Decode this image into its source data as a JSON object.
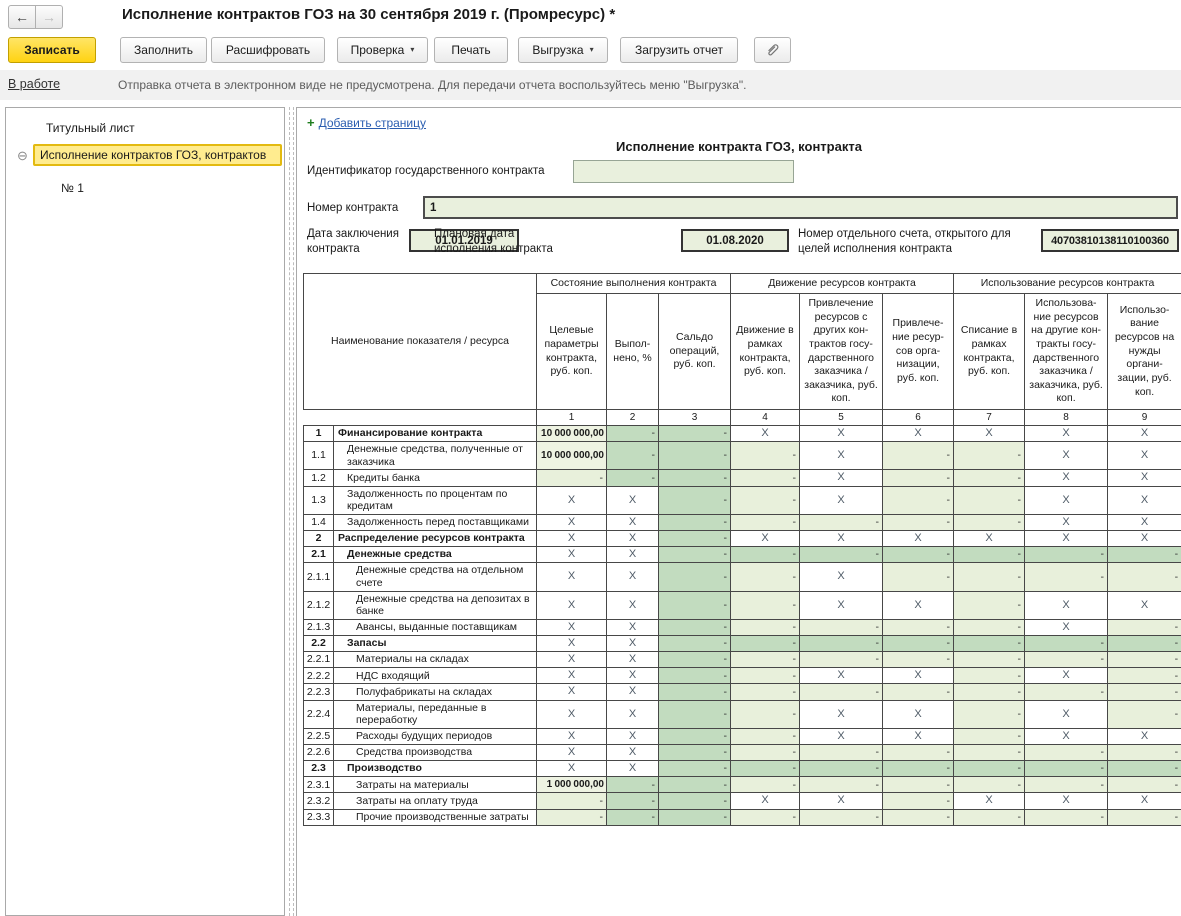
{
  "icons": {
    "back": "←",
    "forward": "→",
    "collapse": "⊖",
    "dropdown": "▾",
    "add_plus": "+"
  },
  "colors": {
    "accent_yellow": "#ffd312",
    "selection_yellow": "#ffec8f",
    "cell_green_light": "#e8f0db",
    "cell_green_dark": "#c2dcbf",
    "input_green": "#e9f0dd",
    "infobar_gray": "#f1f1f1"
  },
  "header": {
    "title": "Исполнение контрактов ГОЗ на 30 сентября 2019 г. (Промресурс) *"
  },
  "toolbar": {
    "save_label": "Записать",
    "fill_label": "Заполнить",
    "decrypt_label": "Расшифровать",
    "check_label": "Проверка",
    "print_label": "Печать",
    "export_label": "Выгрузка",
    "load_report_label": "Загрузить отчет"
  },
  "statusbar": {
    "status_link": "В работе",
    "message": "Отправка отчета в электронном виде не предусмотрена. Для передачи отчета воспользуйтесь меню \"Выгрузка\"."
  },
  "sidebar": {
    "items": [
      {
        "label": "Титульный лист",
        "selected": false
      },
      {
        "label": "Исполнение контрактов ГОЗ, контрактов",
        "selected": true
      },
      {
        "label": "№ 1",
        "selected": false
      }
    ]
  },
  "page": {
    "add_page_label": "Добавить страницу",
    "form_title": "Исполнение контракта ГОЗ, контракта",
    "fields": {
      "contract_id_label": "Идентификатор государственного контракта",
      "contract_id_value": "",
      "contract_number_label": "Номер контракта",
      "contract_number_value": "1",
      "conclusion_date_label": "Дата заключения контракта",
      "conclusion_date_value": "01.01.2019",
      "planned_date_label": "Плановая дата исполнения контракта",
      "planned_date_value": "01.08.2020",
      "account_label": "Номер отдельного счета, открытого для целей исполнения контракта",
      "account_value": "40703810138110100360"
    }
  },
  "table": {
    "name_header": "Наименование показателя / ресурса",
    "x_mark": "X",
    "dash_mark": "-",
    "groups": [
      {
        "label": "Состояние выполнения контракта",
        "span": 3
      },
      {
        "label": "Движение ресурсов контракта",
        "span": 3
      },
      {
        "label": "Использование ресурсов контракта",
        "span": 3
      }
    ],
    "columns": [
      {
        "num": "1",
        "label": "Целевые параметры контракта, руб. коп."
      },
      {
        "num": "2",
        "label": "Выпол-нено, %"
      },
      {
        "num": "3",
        "label": "Сальдо операций, руб. коп."
      },
      {
        "num": "4",
        "label": "Движение в рамках контракта, руб. коп."
      },
      {
        "num": "5",
        "label": "Привлечение ресурсов с других кон-трактов госу-дарственного заказчика / заказчика, руб. коп."
      },
      {
        "num": "6",
        "label": "Привлече-ние ресур-сов орга-низации, руб. коп."
      },
      {
        "num": "7",
        "label": "Списание в рамках контракта, руб. коп."
      },
      {
        "num": "8",
        "label": "Использова-ние ресурсов на другие кон-тракты госу-дарственного заказчика / заказчика, руб. коп."
      },
      {
        "num": "9",
        "label": "Использо-вание ресурсов на нужды органи-зации, руб. коп."
      }
    ],
    "rows": [
      {
        "num": "1",
        "name": "Финансирование контракта",
        "bold": true,
        "indent": 0,
        "cells": [
          "V:10 000 000,00",
          "=",
          "=",
          "X",
          "X",
          "X",
          "X",
          "X",
          "X"
        ]
      },
      {
        "num": "1.1",
        "name": "Денежные средства, полученные от заказчика",
        "bold": false,
        "indent": 1,
        "cells": [
          "V:10 000 000,00",
          "=",
          "=",
          "-",
          "X",
          "-",
          "-",
          "X",
          "X"
        ]
      },
      {
        "num": "1.2",
        "name": "Кредиты банка",
        "bold": false,
        "indent": 1,
        "cells": [
          "-",
          "=",
          "=",
          "-",
          "X",
          "-",
          "-",
          "X",
          "X"
        ]
      },
      {
        "num": "1.3",
        "name": "Задолженность по процентам по кредитам",
        "bold": false,
        "indent": 1,
        "cells": [
          "X",
          "X",
          "=",
          "-",
          "X",
          "-",
          "-",
          "X",
          "X"
        ]
      },
      {
        "num": "1.4",
        "name": "Задолженность перед поставщиками",
        "bold": false,
        "indent": 1,
        "cells": [
          "X",
          "X",
          "=",
          "-",
          "-",
          "-",
          "-",
          "X",
          "X"
        ]
      },
      {
        "num": "2",
        "name": "Распределение ресурсов контракта",
        "bold": true,
        "indent": 0,
        "cells": [
          "X",
          "X",
          "=",
          "X",
          "X",
          "X",
          "X",
          "X",
          "X"
        ]
      },
      {
        "num": "2.1",
        "name": "Денежные средства",
        "bold": true,
        "indent": 1,
        "cells": [
          "X",
          "X",
          "=",
          "=",
          "=",
          "=",
          "=",
          "=",
          "="
        ]
      },
      {
        "num": "2.1.1",
        "name": "Денежные средства на отдельном счете",
        "bold": false,
        "indent": 2,
        "cells": [
          "X",
          "X",
          "=",
          "-",
          "X",
          "-",
          "-",
          "-",
          "-"
        ]
      },
      {
        "num": "2.1.2",
        "name": "Денежные средства на депозитах в банке",
        "bold": false,
        "indent": 2,
        "cells": [
          "X",
          "X",
          "=",
          "-",
          "X",
          "X",
          "-",
          "X",
          "X"
        ]
      },
      {
        "num": "2.1.3",
        "name": "Авансы, выданные поставщикам",
        "bold": false,
        "indent": 2,
        "cells": [
          "X",
          "X",
          "=",
          "-",
          "-",
          "-",
          "-",
          "X",
          "-"
        ]
      },
      {
        "num": "2.2",
        "name": "Запасы",
        "bold": true,
        "indent": 1,
        "cells": [
          "X",
          "X",
          "=",
          "=",
          "=",
          "=",
          "=",
          "=",
          "="
        ]
      },
      {
        "num": "2.2.1",
        "name": "Материалы на складах",
        "bold": false,
        "indent": 2,
        "cells": [
          "X",
          "X",
          "=",
          "-",
          "-",
          "-",
          "-",
          "-",
          "-"
        ]
      },
      {
        "num": "2.2.2",
        "name": "НДС входящий",
        "bold": false,
        "indent": 2,
        "cells": [
          "X",
          "X",
          "=",
          "-",
          "X",
          "X",
          "-",
          "X",
          "-"
        ]
      },
      {
        "num": "2.2.3",
        "name": "Полуфабрикаты на складах",
        "bold": false,
        "indent": 2,
        "cells": [
          "X",
          "X",
          "=",
          "-",
          "-",
          "-",
          "-",
          "-",
          "-"
        ]
      },
      {
        "num": "2.2.4",
        "name": "Материалы, переданные в переработку",
        "bold": false,
        "indent": 2,
        "cells": [
          "X",
          "X",
          "=",
          "-",
          "X",
          "X",
          "-",
          "X",
          "-"
        ]
      },
      {
        "num": "2.2.5",
        "name": "Расходы будущих периодов",
        "bold": false,
        "indent": 2,
        "cells": [
          "X",
          "X",
          "=",
          "-",
          "X",
          "X",
          "-",
          "X",
          "X"
        ]
      },
      {
        "num": "2.2.6",
        "name": "Средства производства",
        "bold": false,
        "indent": 2,
        "cells": [
          "X",
          "X",
          "=",
          "-",
          "-",
          "-",
          "-",
          "-",
          "-"
        ]
      },
      {
        "num": "2.3",
        "name": "Производство",
        "bold": true,
        "indent": 1,
        "cells": [
          "X",
          "X",
          "=",
          "=",
          "=",
          "=",
          "=",
          "=",
          "="
        ]
      },
      {
        "num": "2.3.1",
        "name": "Затраты на материалы",
        "bold": false,
        "indent": 2,
        "cells": [
          "V:1 000 000,00",
          "=",
          "=",
          "-",
          "-",
          "-",
          "-",
          "-",
          "-"
        ]
      },
      {
        "num": "2.3.2",
        "name": "Затраты на оплату труда",
        "bold": false,
        "indent": 2,
        "cells": [
          "-",
          "=",
          "=",
          "X",
          "X",
          "-",
          "X",
          "X",
          "X"
        ]
      },
      {
        "num": "2.3.3",
        "name": "Прочие производственные затраты",
        "bold": false,
        "indent": 2,
        "cells": [
          "-",
          "=",
          "=",
          "-",
          "-",
          "-",
          "-",
          "-",
          "-"
        ]
      }
    ]
  }
}
